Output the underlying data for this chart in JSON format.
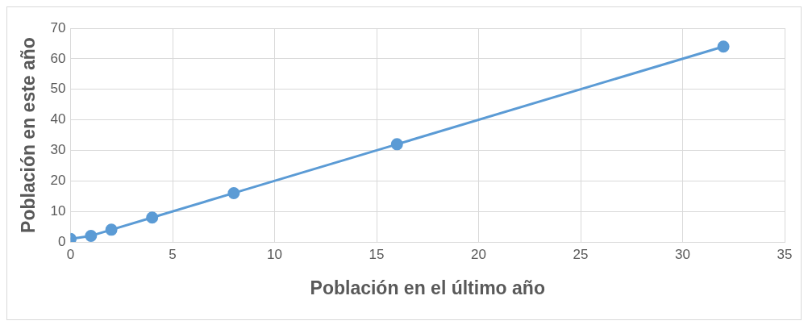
{
  "chart_data": {
    "type": "line",
    "xlabel": "Población en el último año",
    "ylabel": "Población en este año",
    "x": [
      0,
      1,
      2,
      4,
      8,
      16,
      32
    ],
    "series": [
      {
        "color": "#5b9bd5",
        "values": [
          1,
          2,
          4,
          8,
          16,
          32,
          64
        ]
      }
    ],
    "xlim": [
      0,
      35
    ],
    "xticks": [
      0,
      5,
      10,
      15,
      20,
      25,
      30,
      35
    ],
    "ylim": [
      0,
      70
    ],
    "yticks": [
      0,
      10,
      20,
      30,
      40,
      50,
      60,
      70
    ],
    "grid": true,
    "legend": false,
    "marker": "circle",
    "line_style": "solid"
  }
}
